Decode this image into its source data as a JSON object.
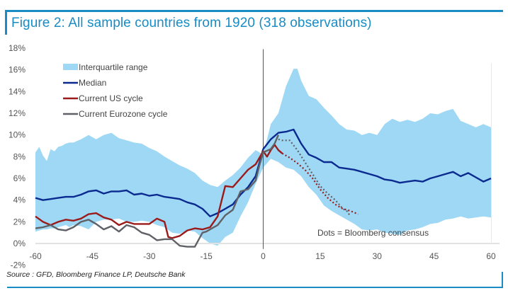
{
  "figure": {
    "title": "Figure 2: All sample countries from 1920 (318 observations)",
    "source": "Source : GFD, Bloomberg Finance LP, Deutsche Bank"
  },
  "colors": {
    "frame": "#1a8cc4",
    "iqr": "#9ed8f5",
    "median": "#0a2a8f",
    "us": "#9b1b1b",
    "eurozone": "#5f6166"
  },
  "chart_data": {
    "type": "line",
    "title": "Figure 2: All sample countries from 1920 (318 observations)",
    "xlabel": "",
    "ylabel": "",
    "xlim": [
      -60,
      60
    ],
    "ylim": [
      -2,
      18
    ],
    "x_ticks": [
      "-60",
      "-45",
      "-30",
      "-15",
      "0",
      "15",
      "30",
      "45",
      "60"
    ],
    "x_tick_values": [
      -60,
      -45,
      -30,
      -15,
      0,
      15,
      30,
      45,
      60
    ],
    "y_ticks": [
      "-2%",
      "0%",
      "2%",
      "4%",
      "6%",
      "8%",
      "10%",
      "12%",
      "14%",
      "16%",
      "18%"
    ],
    "y_tick_values": [
      -2,
      0,
      2,
      4,
      6,
      8,
      10,
      12,
      14,
      16,
      18
    ],
    "grid": false,
    "legend_position": "top-left",
    "annotation": "Dots = Bloomberg consensus",
    "legend": [
      "Interquartile range",
      "Median",
      "Current US cycle",
      "Current Eurozone cycle"
    ],
    "iqr": {
      "name": "Interquartile range",
      "x": [
        -60,
        -59,
        -58,
        -57,
        -56,
        -55,
        -54,
        -53,
        -52,
        -51,
        -50,
        -48,
        -46,
        -44,
        -42,
        -40,
        -38,
        -36,
        -34,
        -32,
        -30,
        -28,
        -26,
        -24,
        -22,
        -20,
        -18,
        -16,
        -14,
        -12,
        -10,
        -8,
        -6,
        -4,
        -2,
        0,
        2,
        4,
        6,
        8,
        9,
        10,
        12,
        14,
        16,
        18,
        20,
        22,
        24,
        26,
        28,
        30,
        32,
        34,
        36,
        38,
        40,
        42,
        44,
        46,
        48,
        50,
        52,
        54,
        56,
        58,
        60
      ],
      "upper": [
        8.4,
        8.9,
        8.1,
        7.6,
        8.7,
        8.5,
        8.9,
        9.0,
        9.2,
        9.3,
        9.3,
        9.6,
        10.0,
        9.6,
        10.0,
        10.2,
        9.7,
        9.5,
        9.3,
        9.2,
        8.8,
        8.5,
        8.0,
        7.6,
        7.2,
        6.9,
        6.5,
        5.8,
        5.4,
        5.2,
        5.8,
        6.3,
        7.0,
        7.9,
        8.6,
        8.2,
        11.0,
        12.0,
        14.5,
        16.1,
        16.1,
        15.0,
        13.6,
        13.3,
        12.5,
        11.8,
        11.0,
        10.5,
        10.4,
        10.0,
        10.2,
        10.0,
        11.0,
        11.5,
        11.2,
        11.4,
        11.2,
        11.5,
        12.0,
        11.9,
        12.2,
        12.4,
        11.3,
        11.0,
        10.7,
        11.0,
        10.7
      ],
      "lower": [
        1.1,
        1.2,
        1.3,
        1.3,
        1.4,
        1.4,
        1.5,
        1.6,
        1.7,
        1.5,
        1.7,
        1.6,
        1.3,
        2.0,
        2.2,
        2.2,
        2.3,
        2.0,
        2.0,
        2.1,
        2.0,
        1.7,
        1.5,
        1.0,
        0.9,
        1.2,
        1.1,
        0.5,
        0.0,
        -0.2,
        0.6,
        1.0,
        2.5,
        3.8,
        5.5,
        7.0,
        7.8,
        7.5,
        7.0,
        6.8,
        6.5,
        6.2,
        5.2,
        4.5,
        3.5,
        3.0,
        2.6,
        2.2,
        1.8,
        1.3,
        1.2,
        1.3,
        1.0,
        0.9,
        0.8,
        1.2,
        1.3,
        1.5,
        1.8,
        1.9,
        2.2,
        2.3,
        2.5,
        2.3,
        2.4,
        2.5,
        2.4
      ]
    },
    "series": [
      {
        "name": "Median",
        "x": [
          -60,
          -58,
          -56,
          -54,
          -52,
          -50,
          -48,
          -46,
          -44,
          -42,
          -40,
          -38,
          -36,
          -34,
          -32,
          -30,
          -28,
          -26,
          -24,
          -22,
          -20,
          -18,
          -16,
          -14,
          -12,
          -10,
          -8,
          -6,
          -4,
          -2,
          0,
          2,
          4,
          6,
          8,
          10,
          12,
          14,
          16,
          18,
          20,
          22,
          24,
          26,
          28,
          30,
          32,
          34,
          36,
          38,
          40,
          42,
          44,
          46,
          48,
          50,
          52,
          54,
          56,
          58,
          60
        ],
        "values": [
          4.2,
          4.0,
          4.1,
          4.2,
          4.3,
          4.3,
          4.5,
          4.8,
          4.9,
          4.6,
          4.8,
          4.8,
          4.9,
          4.5,
          4.6,
          4.4,
          4.5,
          4.3,
          4.2,
          4.1,
          3.8,
          3.6,
          3.2,
          2.5,
          2.8,
          3.2,
          3.6,
          4.5,
          5.2,
          6.2,
          8.7,
          9.6,
          10.2,
          10.3,
          10.5,
          9.2,
          8.2,
          7.9,
          7.5,
          7.5,
          7.0,
          6.9,
          6.8,
          6.6,
          6.4,
          6.2,
          5.9,
          5.8,
          5.6,
          5.7,
          5.8,
          5.7,
          6.0,
          6.2,
          6.4,
          6.6,
          6.2,
          6.5,
          6.1,
          5.7,
          6.0
        ]
      },
      {
        "name": "Current US cycle",
        "x": [
          -60,
          -58,
          -56,
          -54,
          -52,
          -50,
          -48,
          -46,
          -44,
          -42,
          -40,
          -38,
          -36,
          -34,
          -32,
          -30,
          -28,
          -26,
          -25,
          -24,
          -22,
          -20,
          -18,
          -16,
          -14,
          -12,
          -10,
          -8,
          -6,
          -4,
          -2,
          0,
          1,
          2,
          3,
          4,
          5
        ],
        "values": [
          2.5,
          2.0,
          1.7,
          2.0,
          2.2,
          2.1,
          2.3,
          2.7,
          2.8,
          2.4,
          2.2,
          1.7,
          2.0,
          1.8,
          1.8,
          1.8,
          2.3,
          2.0,
          0.6,
          0.5,
          0.7,
          1.2,
          1.4,
          1.3,
          1.5,
          2.5,
          5.3,
          5.2,
          6.0,
          6.8,
          7.3,
          8.5,
          8.0,
          8.6,
          9.1,
          8.6,
          8.3
        ]
      },
      {
        "name": "Current Eurozone cycle",
        "x": [
          -60,
          -58,
          -56,
          -54,
          -52,
          -50,
          -48,
          -46,
          -44,
          -42,
          -40,
          -38,
          -36,
          -34,
          -32,
          -30,
          -28,
          -26,
          -24,
          -22,
          -20,
          -18,
          -16,
          -15,
          -14,
          -12,
          -10,
          -8,
          -6,
          -4,
          -2,
          -1,
          0,
          2,
          3,
          4
        ],
        "values": [
          1.4,
          1.5,
          1.7,
          1.3,
          1.2,
          1.5,
          2.0,
          2.2,
          1.8,
          1.3,
          1.6,
          1.1,
          1.7,
          1.5,
          1.0,
          0.8,
          0.3,
          0.4,
          0.4,
          -0.2,
          -0.3,
          -0.3,
          1.0,
          1.1,
          1.3,
          1.7,
          2.6,
          3.1,
          4.8,
          5.0,
          5.8,
          7.2,
          8.4,
          8.7,
          9.2,
          10.0
        ]
      },
      {
        "name": "Bloomberg consensus (Eurozone)",
        "style": "dotted",
        "x": [
          4,
          5,
          7,
          9,
          11,
          13,
          15,
          17,
          19,
          21,
          22,
          23
        ],
        "values": [
          9.6,
          9.5,
          9.5,
          8.6,
          7.5,
          6.4,
          5.3,
          4.6,
          4.0,
          3.2,
          3.0,
          2.5
        ]
      },
      {
        "name": "Bloomberg consensus (US)",
        "style": "dotted",
        "x": [
          5,
          7,
          9,
          11,
          13,
          15,
          17,
          19,
          21,
          23,
          25
        ],
        "values": [
          8.3,
          7.9,
          7.4,
          6.8,
          6.0,
          5.0,
          4.2,
          3.6,
          3.2,
          3.0,
          2.7
        ]
      }
    ]
  }
}
